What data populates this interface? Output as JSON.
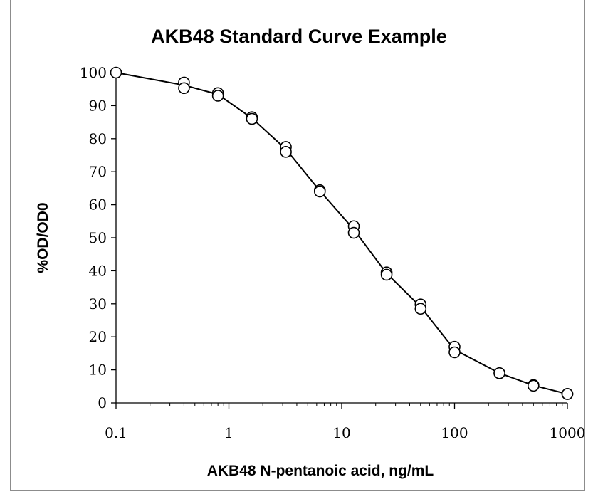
{
  "chart_data": {
    "type": "scatter",
    "title": "AKB48 Standard Curve Example",
    "xlabel": "AKB48 N-pentanoic acid, ng/mL",
    "ylabel": "%OD/OD0",
    "xscale": "log",
    "xlim": [
      0.1,
      1000
    ],
    "ylim": [
      0,
      100
    ],
    "x_ticks": [
      "0.1",
      "1",
      "10",
      "100",
      "1000"
    ],
    "y_ticks": [
      "0",
      "10",
      "20",
      "30",
      "40",
      "50",
      "60",
      "70",
      "80",
      "90",
      "100"
    ],
    "grid": false,
    "legend": "none",
    "series": [
      {
        "x": [
          0.1,
          0.4,
          0.4,
          0.8,
          0.8,
          1.6,
          1.6,
          3.2,
          3.2,
          6.4,
          6.4,
          12.8,
          12.8,
          25,
          25,
          50,
          50,
          100,
          100,
          250,
          250,
          500,
          500,
          1000,
          1000
        ],
        "values": [
          100,
          97,
          95.3,
          93.8,
          93,
          86.5,
          86,
          77.5,
          76,
          64.4,
          64,
          53.5,
          51.5,
          39.5,
          38.8,
          29.8,
          28.5,
          17,
          15.3,
          9,
          9,
          5.4,
          5.2,
          2.7,
          2.7
        ],
        "line": [
          [
            0.1,
            100
          ],
          [
            0.4,
            96.2
          ],
          [
            0.8,
            93.4
          ],
          [
            1.6,
            86.2
          ],
          [
            3.2,
            76.8
          ],
          [
            6.4,
            64.2
          ],
          [
            12.8,
            52.5
          ],
          [
            25,
            39.2
          ],
          [
            50,
            29.1
          ],
          [
            100,
            16.1
          ],
          [
            250,
            9
          ],
          [
            500,
            5.3
          ],
          [
            1000,
            2.7
          ]
        ]
      }
    ],
    "colors": {
      "line": "#000000",
      "marker_fill": "#ffffff",
      "marker_edge": "#000000"
    }
  }
}
